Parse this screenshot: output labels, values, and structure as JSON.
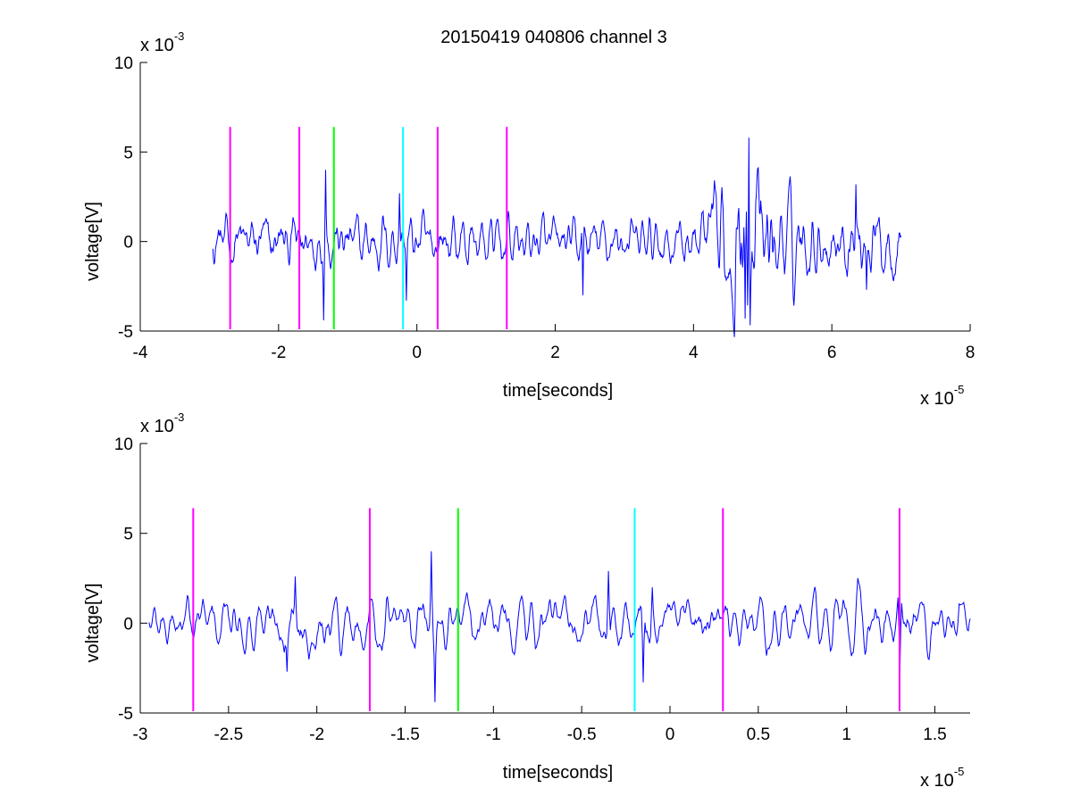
{
  "colors": {
    "signal": "#0000ff",
    "marker_magenta": "#ff00ff",
    "marker_green": "#00ff00",
    "marker_cyan": "#00ffff",
    "axis": "#000000",
    "background": "#ffffff"
  },
  "chart_data": [
    {
      "type": "line",
      "title": "20150419 040806 channel 3",
      "xlabel": "time[seconds]",
      "ylabel": "voltage[V]",
      "x_exponent_base": "x 10",
      "x_exponent_power": "-5",
      "y_exponent_base": "x 10",
      "y_exponent_power": "-3",
      "xlim": [
        -4,
        8
      ],
      "ylim": [
        -5,
        10
      ],
      "xticks": [
        -4,
        -2,
        0,
        2,
        4,
        6,
        8
      ],
      "xtick_labels": [
        "-4",
        "-2",
        "0",
        "2",
        "4",
        "6",
        "8"
      ],
      "yticks": [
        -5,
        0,
        5,
        10
      ],
      "ytick_labels": [
        "-5",
        "0",
        "5",
        "10"
      ],
      "grid": false,
      "series": [
        {
          "x_start": -2.95,
          "x_end": 7.0,
          "amplitude_envelope": [
            [
              -2.95,
              1.0
            ],
            [
              0.5,
              1.0
            ],
            [
              2.0,
              0.8
            ],
            [
              4.0,
              0.9
            ],
            [
              4.5,
              2.6
            ],
            [
              4.8,
              3.4
            ],
            [
              5.1,
              2.2
            ],
            [
              5.6,
              1.2
            ],
            [
              7.0,
              1.3
            ]
          ],
          "notable_points": [
            [
              -1.32,
              4.0
            ],
            [
              -1.35,
              -4.4
            ],
            [
              -0.25,
              2.7
            ],
            [
              -0.15,
              -3.3
            ],
            [
              2.4,
              -3.0
            ],
            [
              4.75,
              -4.3
            ],
            [
              4.8,
              5.8
            ],
            [
              6.35,
              3.2
            ],
            [
              6.5,
              -2.7
            ]
          ]
        }
      ],
      "markers": [
        {
          "x": -2.7,
          "color": "marker_magenta",
          "y_range": [
            -4.9,
            6.4
          ]
        },
        {
          "x": -1.7,
          "color": "marker_magenta",
          "y_range": [
            -4.9,
            6.4
          ]
        },
        {
          "x": -1.2,
          "color": "marker_green",
          "y_range": [
            -4.9,
            6.4
          ]
        },
        {
          "x": -0.2,
          "color": "marker_cyan",
          "y_range": [
            -4.9,
            6.4
          ]
        },
        {
          "x": 0.3,
          "color": "marker_magenta",
          "y_range": [
            -4.9,
            6.4
          ]
        },
        {
          "x": 1.3,
          "color": "marker_magenta",
          "y_range": [
            -4.9,
            6.4
          ]
        }
      ]
    },
    {
      "type": "line",
      "title": "",
      "xlabel": "time[seconds]",
      "ylabel": "voltage[V]",
      "x_exponent_base": "x 10",
      "x_exponent_power": "-5",
      "y_exponent_base": "x 10",
      "y_exponent_power": "-3",
      "xlim": [
        -3.0,
        1.7
      ],
      "ylim": [
        -5,
        10
      ],
      "xticks": [
        -3,
        -2.5,
        -2,
        -1.5,
        -1,
        -0.5,
        0,
        0.5,
        1,
        1.5
      ],
      "xtick_labels": [
        "-3",
        "-2.5",
        "-2",
        "-1.5",
        "-1",
        "-0.5",
        "0",
        "0.5",
        "1",
        "1.5"
      ],
      "yticks": [
        -5,
        0,
        5,
        10
      ],
      "ytick_labels": [
        "-5",
        "0",
        "5",
        "10"
      ],
      "grid": false,
      "series": [
        {
          "x_start": -2.95,
          "x_end": 1.7,
          "amplitude_envelope": [
            [
              -2.95,
              1.0
            ],
            [
              1.7,
              1.0
            ]
          ],
          "notable_points": [
            [
              -2.17,
              -2.7
            ],
            [
              -2.12,
              2.6
            ],
            [
              -1.35,
              4.0
            ],
            [
              -1.33,
              -4.4
            ],
            [
              -0.35,
              2.9
            ],
            [
              -0.15,
              -3.3
            ],
            [
              -0.1,
              2.0
            ],
            [
              1.3,
              -2.8
            ]
          ]
        }
      ],
      "markers": [
        {
          "x": -2.7,
          "color": "marker_magenta",
          "y_range": [
            -4.9,
            6.4
          ]
        },
        {
          "x": -1.7,
          "color": "marker_magenta",
          "y_range": [
            -4.9,
            6.4
          ]
        },
        {
          "x": -1.2,
          "color": "marker_green",
          "y_range": [
            -4.9,
            6.4
          ]
        },
        {
          "x": -0.2,
          "color": "marker_cyan",
          "y_range": [
            -4.9,
            6.4
          ]
        },
        {
          "x": 0.3,
          "color": "marker_magenta",
          "y_range": [
            -4.9,
            6.4
          ]
        },
        {
          "x": 1.3,
          "color": "marker_magenta",
          "y_range": [
            -4.9,
            6.4
          ]
        }
      ]
    }
  ]
}
